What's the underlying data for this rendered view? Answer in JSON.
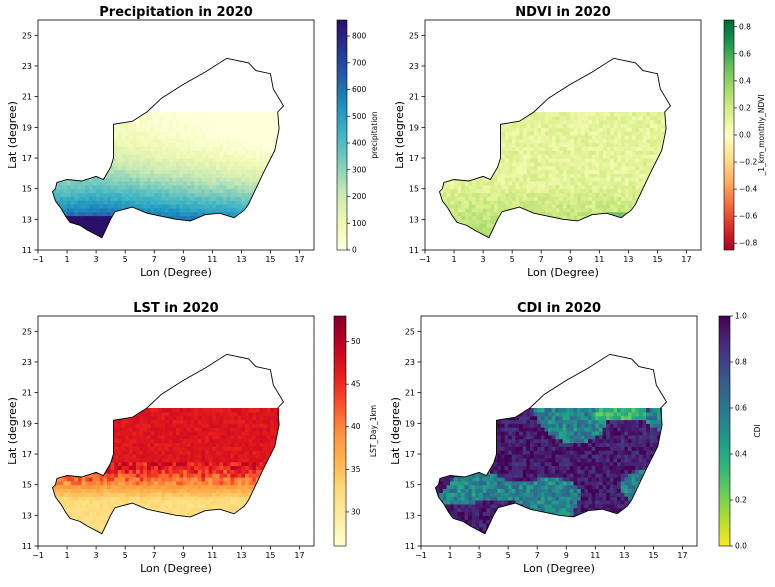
{
  "figure": {
    "panels": [
      {
        "id": "precip",
        "title": "Precipitation in 2020",
        "xlabel": "Lon (Degree)",
        "ylabel": "Lat (degree)",
        "colorbar_label": "precipitation",
        "colorbar_ticks": [
          "0",
          "100",
          "200",
          "300",
          "400",
          "500",
          "600",
          "700",
          "800"
        ],
        "colormap": [
          "#ffffd9",
          "#edf8b1",
          "#c7e9b4",
          "#7fcdbb",
          "#41b6c4",
          "#1d91c0",
          "#225ea8",
          "#253494",
          "#2b0f6b"
        ]
      },
      {
        "id": "ndvi",
        "title": "NDVI in 2020",
        "xlabel": "Lon (Degree)",
        "ylabel": "Lat (degree)",
        "colorbar_label": "_1_km_monthly_NDVI",
        "colorbar_ticks": [
          "−0.8",
          "−0.6",
          "−0.4",
          "−0.2",
          "0.0",
          "0.2",
          "0.4",
          "0.6",
          "0.8"
        ],
        "colormap": [
          "#a50026",
          "#d73027",
          "#f46d43",
          "#fdae61",
          "#fee08b",
          "#ffffbf",
          "#d9ef8b",
          "#a6d96a",
          "#66bd63",
          "#1a9850",
          "#006837"
        ]
      },
      {
        "id": "lst",
        "title": "LST in 2020",
        "xlabel": "Lon (Degree)",
        "ylabel": "Lat (degree)",
        "colorbar_label": "LST_Day_1km",
        "colorbar_ticks": [
          "30",
          "35",
          "40",
          "45",
          "50"
        ],
        "colormap": [
          "#ffffcc",
          "#ffeda0",
          "#fed976",
          "#feb24c",
          "#fd8d3c",
          "#fc4e2a",
          "#e31a1c",
          "#bd0026",
          "#800026"
        ]
      },
      {
        "id": "cdi",
        "title": "CDI in 2020",
        "xlabel": "Lon (Degree)",
        "ylabel": "Lat (degree)",
        "colorbar_label": "CDI",
        "colorbar_ticks": [
          "0.0",
          "0.2",
          "0.4",
          "0.6",
          "0.8",
          "1.0"
        ],
        "colormap": [
          "#fde725",
          "#b5de2b",
          "#6ece58",
          "#35b779",
          "#1f9e89",
          "#26828e",
          "#31688e",
          "#3e4989",
          "#482878",
          "#440154"
        ]
      }
    ],
    "x_ticks": [
      "−1",
      "1",
      "3",
      "5",
      "7",
      "9",
      "11",
      "13",
      "15",
      "17"
    ],
    "y_ticks": [
      "11",
      "13",
      "15",
      "17",
      "19",
      "21",
      "23",
      "25"
    ],
    "x_range": [
      -1,
      18
    ],
    "y_range": [
      11,
      26
    ]
  },
  "chart_data": [
    {
      "type": "heatmap",
      "title": "Precipitation in 2020",
      "xlabel": "Lon (Degree)",
      "ylabel": "Lat (degree)",
      "xlim": [
        -1,
        18
      ],
      "ylim": [
        11,
        26
      ],
      "colorbar": "precipitation",
      "clim": [
        0,
        860
      ],
      "pattern": "values increase from north (~0) to south-west (~800+), highest near lon 2-4, lat 12-13"
    },
    {
      "type": "heatmap",
      "title": "NDVI in 2020",
      "xlabel": "Lon (Degree)",
      "ylabel": "Lat (degree)",
      "xlim": [
        -1,
        18
      ],
      "ylim": [
        11,
        26
      ],
      "colorbar": "_1_km_monthly_NDVI",
      "clim": [
        -0.85,
        0.85
      ],
      "pattern": "mostly ~0.1-0.2, greener (~0.4) in the southern band"
    },
    {
      "type": "heatmap",
      "title": "LST in 2020",
      "xlabel": "Lon (Degree)",
      "ylabel": "Lat (degree)",
      "xlim": [
        -1,
        18
      ],
      "ylim": [
        11,
        26
      ],
      "colorbar": "LST_Day_1km",
      "clim": [
        26,
        53
      ],
      "pattern": "north ~44-47, south ~30-35"
    },
    {
      "type": "heatmap",
      "title": "CDI in 2020",
      "xlabel": "Lon (Degree)",
      "ylabel": "Lat (degree)",
      "xlim": [
        -1,
        18
      ],
      "ylim": [
        11,
        26
      ],
      "colorbar": "CDI",
      "clim": [
        0,
        1
      ],
      "pattern": "mostly ~0.8-1.0 with mid values (~0.4-0.6) in central-north patches"
    }
  ]
}
